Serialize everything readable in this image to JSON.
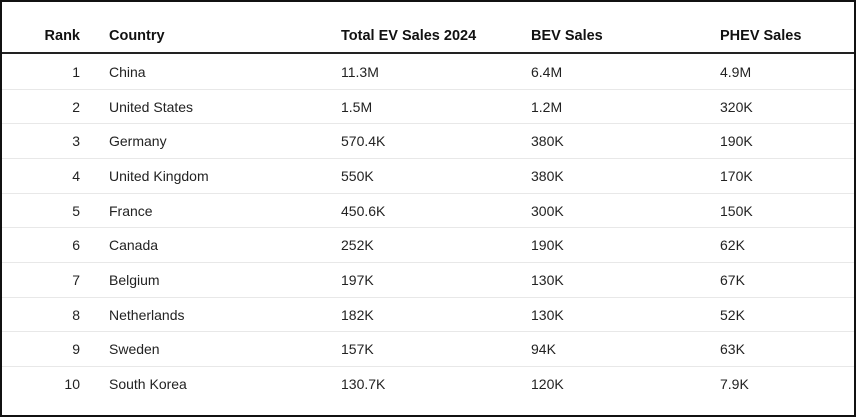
{
  "table": {
    "headers": [
      "Rank",
      "Country",
      "Total EV Sales 2024",
      "BEV Sales",
      "PHEV Sales"
    ],
    "rows": [
      [
        "1",
        "China",
        "11.3M",
        "6.4M",
        "4.9M"
      ],
      [
        "2",
        "United States",
        "1.5M",
        "1.2M",
        "320K"
      ],
      [
        "3",
        "Germany",
        "570.4K",
        "380K",
        "190K"
      ],
      [
        "4",
        "United Kingdom",
        "550K",
        "380K",
        "170K"
      ],
      [
        "5",
        "France",
        "450.6K",
        "300K",
        "150K"
      ],
      [
        "6",
        "Canada",
        "252K",
        "190K",
        "62K"
      ],
      [
        "7",
        "Belgium",
        "197K",
        "130K",
        "67K"
      ],
      [
        "8",
        "Netherlands",
        "182K",
        "130K",
        "52K"
      ],
      [
        "9",
        "Sweden",
        "157K",
        "94K",
        "63K"
      ],
      [
        "10",
        "South Korea",
        "130.7K",
        "120K",
        "7.9K"
      ]
    ]
  }
}
